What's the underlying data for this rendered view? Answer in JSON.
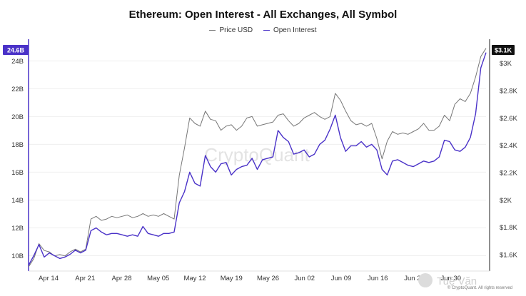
{
  "chart_data": {
    "type": "line",
    "title": "Ethereum: Open Interest - All Exchanges, All Symbol",
    "x_tick_labels": [
      "Apr 14",
      "Apr 21",
      "Apr 28",
      "May 05",
      "May 12",
      "May 19",
      "May 26",
      "Jun 02",
      "Jun 09",
      "Jun 16",
      "Jun 23",
      "Jun 30"
    ],
    "left_axis": {
      "ticks": [
        "10B",
        "12B",
        "14B",
        "16B",
        "18B",
        "20B",
        "22B",
        "24B"
      ],
      "range": [
        9,
        25.3
      ]
    },
    "right_axis": {
      "ticks": [
        "$1.6K",
        "$1.8K",
        "$2K",
        "$2.2K",
        "$2.4K",
        "$2.6K",
        "$2.8K",
        "$3K"
      ],
      "range": [
        1490,
        3150
      ]
    },
    "current_badges": {
      "left": "24.6B",
      "right": "$3.1K"
    },
    "series": [
      {
        "name": "Price USD",
        "axis": "right",
        "color": "#777777",
        "values": [
          1510,
          1570,
          1680,
          1630,
          1620,
          1590,
          1600,
          1590,
          1620,
          1640,
          1620,
          1640,
          1860,
          1880,
          1850,
          1860,
          1880,
          1870,
          1880,
          1890,
          1870,
          1880,
          1900,
          1880,
          1890,
          1880,
          1900,
          1880,
          1860,
          2180,
          2380,
          2600,
          2560,
          2540,
          2650,
          2590,
          2580,
          2510,
          2540,
          2550,
          2510,
          2540,
          2600,
          2610,
          2540,
          2550,
          2560,
          2570,
          2620,
          2630,
          2580,
          2540,
          2560,
          2600,
          2620,
          2640,
          2610,
          2590,
          2610,
          2780,
          2730,
          2650,
          2580,
          2550,
          2560,
          2540,
          2560,
          2450,
          2300,
          2430,
          2500,
          2480,
          2490,
          2480,
          2500,
          2520,
          2560,
          2510,
          2510,
          2540,
          2620,
          2580,
          2700,
          2740,
          2720,
          2780,
          2900,
          3050,
          3110
        ]
      },
      {
        "name": "Open Interest",
        "axis": "left",
        "color": "#4a32c8",
        "values": [
          9.3,
          10.0,
          10.8,
          9.9,
          10.2,
          10.0,
          9.8,
          9.9,
          10.1,
          10.4,
          10.2,
          10.4,
          11.8,
          12.0,
          11.7,
          11.5,
          11.6,
          11.6,
          11.5,
          11.4,
          11.5,
          11.4,
          12.1,
          11.6,
          11.5,
          11.4,
          11.6,
          11.6,
          11.7,
          13.8,
          14.6,
          16.0,
          15.2,
          15.0,
          17.2,
          16.4,
          16.0,
          16.6,
          16.7,
          15.8,
          16.2,
          16.4,
          16.5,
          17.0,
          16.2,
          16.9,
          17.0,
          17.1,
          19.0,
          18.5,
          18.2,
          17.3,
          17.4,
          17.6,
          17.1,
          17.3,
          18.0,
          18.3,
          19.1,
          20.1,
          18.5,
          17.5,
          17.9,
          17.9,
          18.2,
          17.8,
          18.0,
          17.6,
          16.2,
          15.8,
          16.8,
          16.9,
          16.7,
          16.5,
          16.4,
          16.6,
          16.8,
          16.7,
          16.8,
          17.1,
          18.3,
          18.2,
          17.6,
          17.5,
          17.8,
          18.5,
          20.2,
          23.5,
          24.6
        ]
      }
    ],
    "watermark": "CryptoQuant",
    "footer": "© CryptoQuant. All rights reserved",
    "corner_logo": "Tuệ Văn"
  }
}
